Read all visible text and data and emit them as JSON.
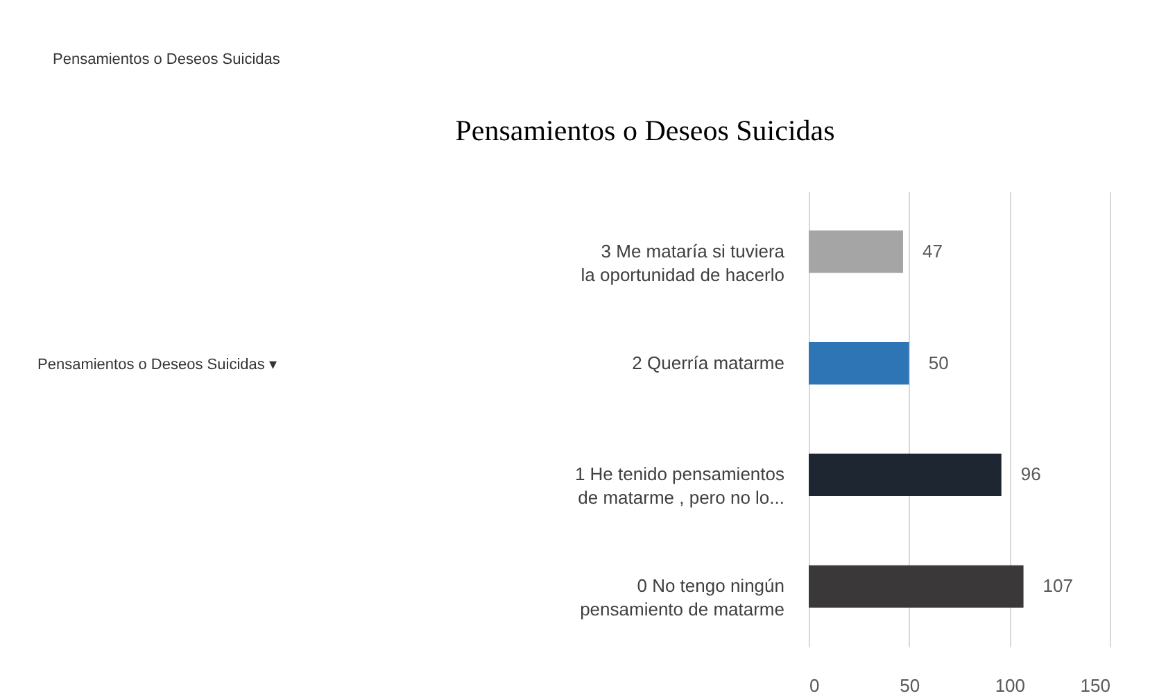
{
  "chart_data": {
    "type": "bar",
    "orientation": "horizontal",
    "title": "Pensamientos o Deseos Suicidas",
    "categories": [
      "3  Me mataría si tuviera la oportunidad de hacerlo",
      "2 Querría matarme",
      "1  He tenido pensamientos de matarme , pero no lo...",
      "0  No tengo ningún pensamiento de matarme"
    ],
    "values": [
      47,
      50,
      96,
      107
    ],
    "colors": [
      "#a5a5a5",
      "#2e75b6",
      "#1e2631",
      "#3a3838"
    ],
    "xlim": [
      0,
      150
    ],
    "xticks": [
      0,
      50,
      100,
      150
    ],
    "grid": "x",
    "data_labels": true,
    "annotations": [
      "Pensamientos o Deseos Suicidas",
      "Pensamientos o Deseos Suicidas  ▾"
    ]
  }
}
